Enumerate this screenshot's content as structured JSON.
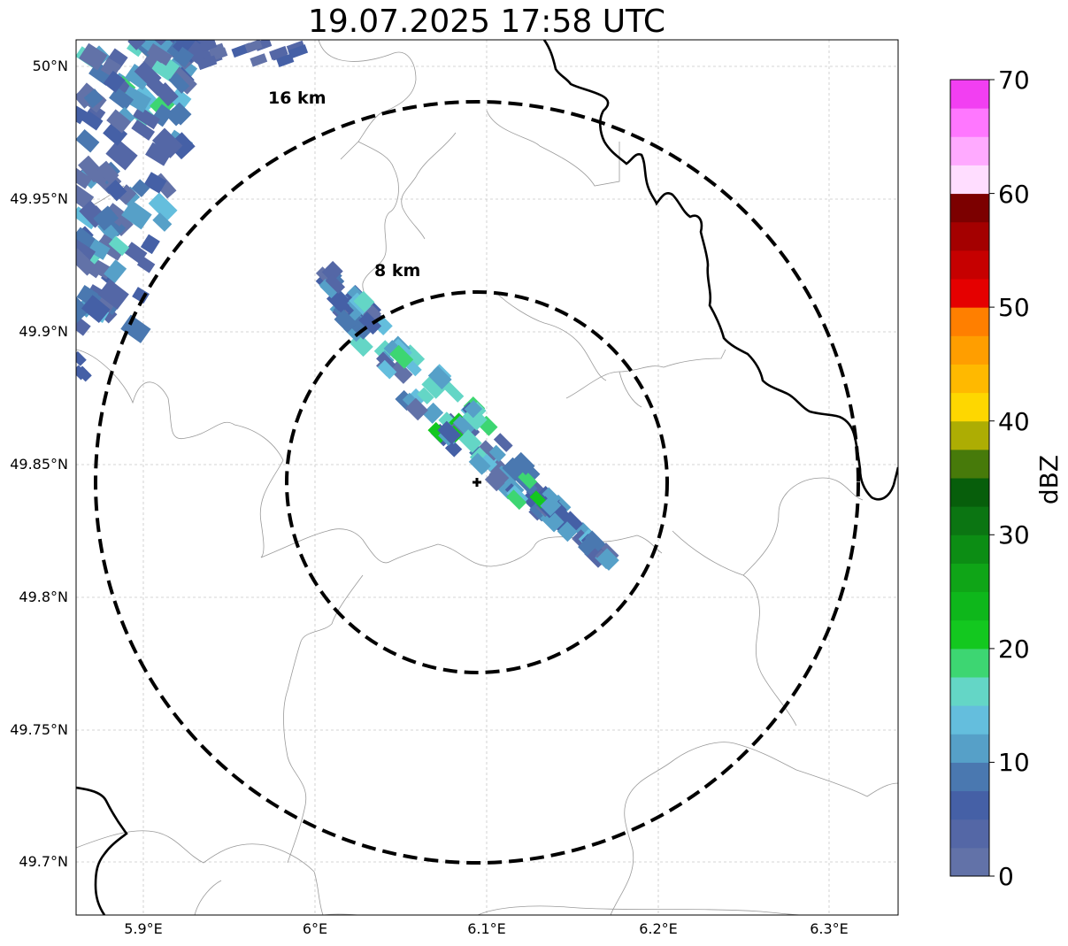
{
  "title": "19.07.2025 17:58 UTC",
  "rings": [
    {
      "label": "16 km"
    },
    {
      "label": "8 km"
    }
  ],
  "lat_ticks": [
    "50°N",
    "49.95°N",
    "49.9°N",
    "49.85°N",
    "49.8°N",
    "49.75°N",
    "49.7°N"
  ],
  "lon_ticks": [
    "5.9°E",
    "6°E",
    "6.1°E",
    "6.2°E",
    "6.3°E"
  ],
  "colorbar": {
    "label": "dBZ",
    "ticks": [
      "0",
      "10",
      "20",
      "30",
      "40",
      "50",
      "60",
      "70"
    ],
    "min": 0,
    "max": 70,
    "step": 2.5,
    "colors": [
      "#6272a8",
      "#5467a6",
      "#4560a6",
      "#4a78b0",
      "#56a0c8",
      "#64bedd",
      "#64d6c6",
      "#3dd672",
      "#13c81f",
      "#0eb71b",
      "#0fa517",
      "#0c8d14",
      "#0b7512",
      "#075e0b",
      "#477a0a",
      "#adad03",
      "#fed700",
      "#ffb900",
      "#ff9e00",
      "#ff7f00",
      "#e50000",
      "#c60000",
      "#a40000",
      "#7c0000",
      "#ffddff",
      "#ffaaff",
      "#ff77ff",
      "#f23ff2"
    ]
  },
  "colors": {
    "border_thick": "#000000",
    "border_thin": "#9a9a9a",
    "grid": "#c8c8c8"
  }
}
